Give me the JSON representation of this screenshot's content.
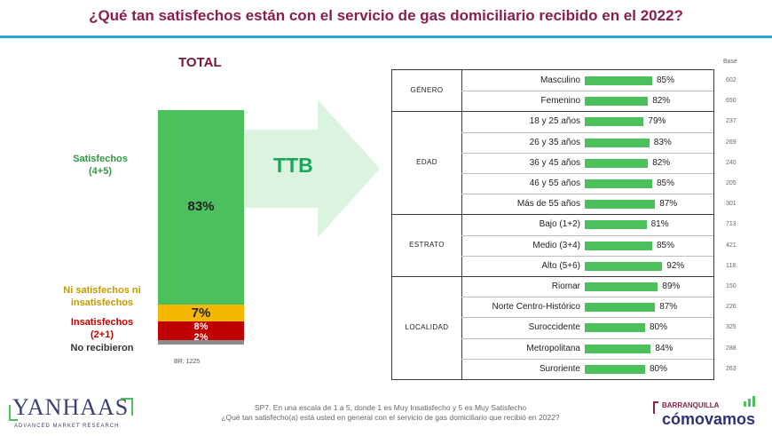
{
  "title": "¿Qué tan satisfechos están con el servicio de gas domiciliario  recibido en el 2022?",
  "total_label": "TOTAL",
  "ttb_label": "TTB",
  "base_header": "Base",
  "total_base": "BR: 1225",
  "colors": {
    "satisfied": "#4cc05c",
    "neutral": "#f5b700",
    "unsatisfied": "#c00000",
    "not_received": "#8c8c8c",
    "title": "#8a1f4e",
    "rule": "#2ca6d9"
  },
  "legend": {
    "satisfied": [
      "Satisfechos",
      "(4+5)"
    ],
    "neutral": [
      "Ni satisfechos ni",
      "insatisfechos"
    ],
    "unsatisfied": [
      "Insatisfechos",
      "(2+1)"
    ],
    "not_received": "No recibieron"
  },
  "chart_data": [
    {
      "type": "bar",
      "stacked": true,
      "categories": [
        "TOTAL"
      ],
      "series": [
        {
          "name": "Satisfechos (4+5)",
          "values": [
            83
          ],
          "label": "83%"
        },
        {
          "name": "Ni satisfechos ni insatisfechos",
          "values": [
            7
          ],
          "label": "7%"
        },
        {
          "name": "Insatisfechos (2+1)",
          "values": [
            8
          ],
          "label": "8%"
        },
        {
          "name": "No recibieron",
          "values": [
            2
          ],
          "label": "2%"
        }
      ]
    },
    {
      "type": "bar",
      "orientation": "horizontal",
      "groups": [
        {
          "name": "GÉNERO",
          "rows": [
            {
              "label": "Masculino",
              "value": 85,
              "value_label": "85%",
              "base": "602"
            },
            {
              "label": "Femenino",
              "value": 82,
              "value_label": "82%",
              "base": "650"
            }
          ]
        },
        {
          "name": "EDAD",
          "rows": [
            {
              "label": "18 y 25 años",
              "value": 79,
              "value_label": "79%",
              "base": "237"
            },
            {
              "label": "26 y 35 años",
              "value": 83,
              "value_label": "83%",
              "base": "269"
            },
            {
              "label": "36 y 45 años",
              "value": 82,
              "value_label": "82%",
              "base": "240"
            },
            {
              "label": "46 y 55 años",
              "value": 85,
              "value_label": "85%",
              "base": "205"
            },
            {
              "label": "Más de 55 años",
              "value": 87,
              "value_label": "87%",
              "base": "301"
            }
          ]
        },
        {
          "name": "ESTRATO",
          "rows": [
            {
              "label": "Bajo (1+2)",
              "value": 81,
              "value_label": "81%",
              "base": "713"
            },
            {
              "label": "Medio (3+4)",
              "value": 85,
              "value_label": "85%",
              "base": "421"
            },
            {
              "label": "Alto (5+6)",
              "value": 92,
              "value_label": "92%",
              "base": "118"
            }
          ]
        },
        {
          "name": "LOCALIDAD",
          "rows": [
            {
              "label": "Riomar",
              "value": 89,
              "value_label": "89%",
              "base": "150"
            },
            {
              "label": "Norte Centro-Histórico",
              "value": 87,
              "value_label": "87%",
              "base": "226"
            },
            {
              "label": "Suroccidente",
              "value": 80,
              "value_label": "80%",
              "base": "325"
            },
            {
              "label": "Metropolitana",
              "value": 84,
              "value_label": "84%",
              "base": "288"
            },
            {
              "label": "Suroriente",
              "value": 80,
              "value_label": "80%",
              "base": "263"
            }
          ]
        }
      ]
    }
  ],
  "footnote": [
    "SP7. En una escala de 1 a 5, donde 1 es Muy Insatisfecho y 5 es Muy Satisfecho",
    "¿Qué tan satisfecho(a) está usted en general con el servicio de gas domiciliario que recibió en 2022?"
  ],
  "logos": {
    "left_main": "YANHAAS",
    "left_sub": "ADVANCED MARKET RESEARCH",
    "right_top": "BARRANQUILLA",
    "right_main": "cómovamos"
  }
}
